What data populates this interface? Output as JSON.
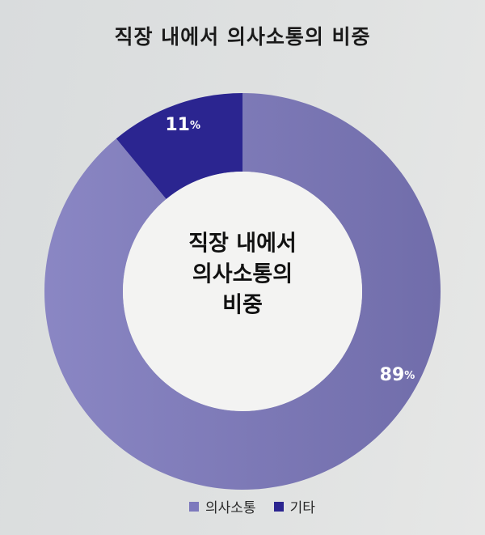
{
  "chart_data": {
    "type": "pie",
    "title": "직장 내에서 의사소통의 비중",
    "center_label": [
      "직장 내에서",
      "의사소통의",
      "비중"
    ],
    "categories": [
      "의사소통",
      "기타"
    ],
    "values": [
      89,
      11
    ],
    "value_labels": [
      "89%",
      "11%"
    ],
    "colors": [
      "#7d79bd",
      "#2b2590"
    ],
    "legend_position": "bottom"
  }
}
